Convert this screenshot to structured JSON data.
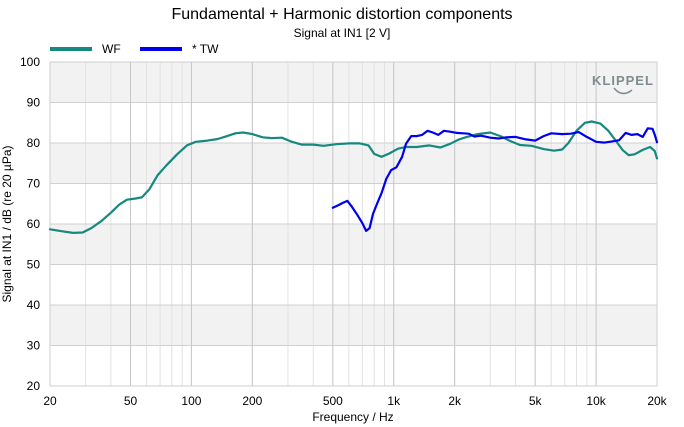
{
  "chart_data": {
    "type": "line",
    "title": "Fundamental + Harmonic distortion components",
    "subtitle": "Signal at IN1 [2 V]",
    "xlabel": "Frequency / Hz",
    "ylabel": "Signal at IN1 / dB (re 20 µPa)",
    "xscale": "log",
    "xlim": [
      20,
      20000
    ],
    "ylim": [
      20,
      100
    ],
    "grid": true,
    "legend_position": "top-left",
    "x_ticks": [
      {
        "value": 20,
        "label": "20"
      },
      {
        "value": 50,
        "label": "50"
      },
      {
        "value": 100,
        "label": "100"
      },
      {
        "value": 200,
        "label": "200"
      },
      {
        "value": 500,
        "label": "500"
      },
      {
        "value": 1000,
        "label": "1k"
      },
      {
        "value": 2000,
        "label": "2k"
      },
      {
        "value": 5000,
        "label": "5k"
      },
      {
        "value": 10000,
        "label": "10k"
      },
      {
        "value": 20000,
        "label": "20k"
      }
    ],
    "y_ticks": [
      20,
      30,
      40,
      50,
      60,
      70,
      80,
      90,
      100
    ],
    "series": [
      {
        "name": "WF",
        "color": "#16897f",
        "points": [
          [
            20,
            58.7
          ],
          [
            23,
            58.2
          ],
          [
            26,
            57.8
          ],
          [
            29,
            57.9
          ],
          [
            32,
            59.0
          ],
          [
            36,
            60.8
          ],
          [
            40,
            62.8
          ],
          [
            44,
            64.8
          ],
          [
            48,
            66.0
          ],
          [
            53,
            66.3
          ],
          [
            57,
            66.6
          ],
          [
            62,
            68.6
          ],
          [
            68,
            72.0
          ],
          [
            75,
            74.4
          ],
          [
            85,
            77.2
          ],
          [
            95,
            79.4
          ],
          [
            105,
            80.3
          ],
          [
            120,
            80.6
          ],
          [
            135,
            81.0
          ],
          [
            150,
            81.7
          ],
          [
            165,
            82.4
          ],
          [
            180,
            82.6
          ],
          [
            200,
            82.2
          ],
          [
            225,
            81.4
          ],
          [
            250,
            81.2
          ],
          [
            280,
            81.3
          ],
          [
            310,
            80.4
          ],
          [
            350,
            79.6
          ],
          [
            400,
            79.6
          ],
          [
            450,
            79.3
          ],
          [
            520,
            79.7
          ],
          [
            600,
            79.9
          ],
          [
            680,
            79.9
          ],
          [
            750,
            79.4
          ],
          [
            800,
            77.3
          ],
          [
            870,
            76.6
          ],
          [
            950,
            77.4
          ],
          [
            1050,
            78.6
          ],
          [
            1150,
            79.0
          ],
          [
            1300,
            79.0
          ],
          [
            1500,
            79.4
          ],
          [
            1700,
            78.9
          ],
          [
            1900,
            79.8
          ],
          [
            2100,
            80.9
          ],
          [
            2300,
            81.5
          ],
          [
            2600,
            82.2
          ],
          [
            3000,
            82.6
          ],
          [
            3400,
            81.6
          ],
          [
            3800,
            80.4
          ],
          [
            4200,
            79.5
          ],
          [
            4800,
            79.3
          ],
          [
            5500,
            78.5
          ],
          [
            6200,
            78.1
          ],
          [
            6800,
            78.4
          ],
          [
            7300,
            80.0
          ],
          [
            8000,
            83.0
          ],
          [
            8800,
            85.0
          ],
          [
            9500,
            85.3
          ],
          [
            10500,
            84.8
          ],
          [
            11500,
            83.0
          ],
          [
            12500,
            80.6
          ],
          [
            13500,
            78.3
          ],
          [
            14500,
            77.0
          ],
          [
            15500,
            77.2
          ],
          [
            17000,
            78.3
          ],
          [
            18500,
            79.0
          ],
          [
            19500,
            78.0
          ],
          [
            20000,
            76.2
          ]
        ]
      },
      {
        "name": "* TW",
        "color": "#0000ee",
        "points": [
          [
            500,
            64.0
          ],
          [
            530,
            64.6
          ],
          [
            560,
            65.2
          ],
          [
            590,
            65.7
          ],
          [
            620,
            64.3
          ],
          [
            660,
            62.3
          ],
          [
            700,
            60.2
          ],
          [
            730,
            58.3
          ],
          [
            760,
            59.0
          ],
          [
            790,
            62.5
          ],
          [
            830,
            65.2
          ],
          [
            870,
            67.6
          ],
          [
            920,
            71.2
          ],
          [
            970,
            73.3
          ],
          [
            1030,
            74.0
          ],
          [
            1100,
            76.6
          ],
          [
            1150,
            79.8
          ],
          [
            1220,
            81.7
          ],
          [
            1300,
            81.7
          ],
          [
            1380,
            82.0
          ],
          [
            1470,
            83.0
          ],
          [
            1560,
            82.6
          ],
          [
            1660,
            82.0
          ],
          [
            1770,
            83.0
          ],
          [
            1900,
            82.8
          ],
          [
            2050,
            82.5
          ],
          [
            2200,
            82.4
          ],
          [
            2350,
            82.3
          ],
          [
            2500,
            81.6
          ],
          [
            2700,
            81.8
          ],
          [
            3000,
            81.3
          ],
          [
            3300,
            81.1
          ],
          [
            3600,
            81.4
          ],
          [
            4000,
            81.5
          ],
          [
            4500,
            80.9
          ],
          [
            5000,
            80.6
          ],
          [
            5500,
            81.7
          ],
          [
            6000,
            82.4
          ],
          [
            6800,
            82.2
          ],
          [
            7500,
            82.3
          ],
          [
            8200,
            82.7
          ],
          [
            9000,
            81.5
          ],
          [
            10000,
            80.3
          ],
          [
            11000,
            80.1
          ],
          [
            12000,
            80.4
          ],
          [
            13000,
            80.7
          ],
          [
            14000,
            82.5
          ],
          [
            15000,
            82.0
          ],
          [
            16000,
            82.2
          ],
          [
            17000,
            81.5
          ],
          [
            18000,
            83.6
          ],
          [
            19000,
            83.5
          ],
          [
            19500,
            82.0
          ],
          [
            20000,
            80.2
          ]
        ]
      }
    ]
  },
  "logo": {
    "text": "KLIPPEL",
    "color": "#7f8c8d"
  }
}
